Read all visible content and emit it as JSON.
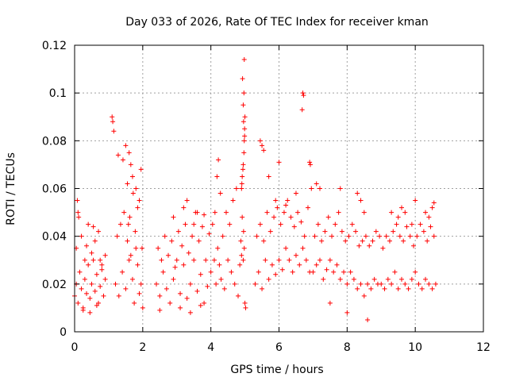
{
  "chart_data": {
    "type": "scatter",
    "title": "Day 033 of 2026, Rate Of TEC Index for receiver kman",
    "xlabel": "GPS time / hours",
    "ylabel": "ROTI / TECUs",
    "xlim": [
      0,
      12
    ],
    "ylim": [
      0,
      0.12
    ],
    "xticks": [
      0,
      2,
      4,
      6,
      8,
      10,
      12
    ],
    "xtick_labels": [
      "0",
      "2",
      "4",
      "6",
      "8",
      "10",
      "12"
    ],
    "yticks": [
      0,
      0.02,
      0.04,
      0.06,
      0.08,
      0.1,
      0.12
    ],
    "ytick_labels": [
      "0",
      "0.02",
      "0.04",
      "0.06",
      "0.08",
      "0.1",
      "0.12"
    ],
    "grid": true,
    "marker": "plus",
    "color": "#ff0000",
    "series": [
      {
        "name": "ROTI",
        "x": [
          0.0,
          0.05,
          0.1,
          0.15,
          0.2,
          0.25,
          0.3,
          0.35,
          0.4,
          0.45,
          0.5,
          0.55,
          0.6,
          0.65,
          0.7,
          0.75,
          0.8,
          0.85,
          0.9,
          0.05,
          0.1,
          0.2,
          0.3,
          0.4,
          0.5,
          0.6,
          0.7,
          0.8,
          0.9,
          0.08,
          0.12,
          0.35,
          0.55,
          0.75,
          0.25,
          0.45,
          0.65,
          1.1,
          1.12,
          1.15,
          1.2,
          1.3,
          1.4,
          1.5,
          1.6,
          1.7,
          1.75,
          1.8,
          1.85,
          1.9,
          1.95,
          2.0,
          1.25,
          1.35,
          1.45,
          1.55,
          1.65,
          1.5,
          1.6,
          1.65,
          1.7,
          1.8,
          1.9,
          1.95,
          1.72,
          1.85,
          1.62,
          1.55,
          1.28,
          1.42,
          1.58,
          1.78,
          1.98,
          2.4,
          2.5,
          2.6,
          2.7,
          2.8,
          2.9,
          3.0,
          3.1,
          3.2,
          3.3,
          3.4,
          3.5,
          3.6,
          3.7,
          3.8,
          3.9,
          2.45,
          2.55,
          2.65,
          2.75,
          2.85,
          2.95,
          3.05,
          3.15,
          3.25,
          3.35,
          3.45,
          3.55,
          3.65,
          3.75,
          3.85,
          3.95,
          2.9,
          3.2,
          3.3,
          3.5,
          3.6,
          3.8,
          2.5,
          3.1,
          3.4,
          3.7,
          4.0,
          4.1,
          4.15,
          4.2,
          4.25,
          4.3,
          4.4,
          4.5,
          4.6,
          4.7,
          4.8,
          4.85,
          4.9,
          4.95,
          5.0,
          5.02,
          4.05,
          4.12,
          4.18,
          4.22,
          4.28,
          4.35,
          4.45,
          4.55,
          4.65,
          4.75,
          4.88,
          4.92,
          4.96,
          4.98,
          4.9,
          4.92,
          4.95,
          4.97,
          4.98,
          4.99,
          5.0,
          4.95,
          4.97,
          4.93,
          4.96,
          4.99,
          4.94,
          4.98,
          4.91,
          5.3,
          5.4,
          5.5,
          5.6,
          5.7,
          5.8,
          5.9,
          6.0,
          6.1,
          6.2,
          6.3,
          6.4,
          6.5,
          6.6,
          6.7,
          6.8,
          6.9,
          5.35,
          5.45,
          5.55,
          5.65,
          5.75,
          5.85,
          5.95,
          6.05,
          6.15,
          6.25,
          6.35,
          6.45,
          6.55,
          6.65,
          6.75,
          6.85,
          6.95,
          5.45,
          5.5,
          5.55,
          5.7,
          6.0,
          6.7,
          6.72,
          6.68,
          6.9,
          6.92,
          6.5,
          6.2,
          5.9,
          7.0,
          7.1,
          7.2,
          7.3,
          7.4,
          7.5,
          7.6,
          7.7,
          7.8,
          7.9,
          8.0,
          8.1,
          8.2,
          8.3,
          8.4,
          8.5,
          8.6,
          8.7,
          8.8,
          8.9,
          7.05,
          7.15,
          7.25,
          7.35,
          7.45,
          7.55,
          7.65,
          7.75,
          7.85,
          7.95,
          8.05,
          8.15,
          8.25,
          8.35,
          8.45,
          8.55,
          8.65,
          8.75,
          8.85,
          8.95,
          7.1,
          7.2,
          7.8,
          8.3,
          8.4,
          8.5,
          7.5,
          8.0,
          8.6,
          9.0,
          9.1,
          9.2,
          9.3,
          9.4,
          9.5,
          9.6,
          9.7,
          9.8,
          9.9,
          10.0,
          10.1,
          10.2,
          10.3,
          10.4,
          10.5,
          10.6,
          9.05,
          9.15,
          9.25,
          9.35,
          9.45,
          9.55,
          9.65,
          9.75,
          9.85,
          9.95,
          10.05,
          10.15,
          10.25,
          10.35,
          10.45,
          10.55,
          9.3,
          9.5,
          9.6,
          9.7,
          10.0,
          10.3,
          10.4,
          10.5,
          10.55,
          9.9
        ],
        "y": [
          0.015,
          0.02,
          0.012,
          0.025,
          0.018,
          0.01,
          0.022,
          0.016,
          0.028,
          0.014,
          0.02,
          0.03,
          0.017,
          0.024,
          0.012,
          0.019,
          0.026,
          0.015,
          0.022,
          0.035,
          0.05,
          0.04,
          0.03,
          0.045,
          0.033,
          0.038,
          0.042,
          0.028,
          0.032,
          0.055,
          0.048,
          0.036,
          0.044,
          0.03,
          0.009,
          0.008,
          0.011,
          0.09,
          0.088,
          0.084,
          0.02,
          0.015,
          0.025,
          0.018,
          0.03,
          0.022,
          0.012,
          0.035,
          0.028,
          0.016,
          0.02,
          0.01,
          0.04,
          0.045,
          0.05,
          0.038,
          0.032,
          0.078,
          0.075,
          0.07,
          0.065,
          0.06,
          0.055,
          0.068,
          0.058,
          0.052,
          0.048,
          0.062,
          0.074,
          0.072,
          0.045,
          0.042,
          0.035,
          0.02,
          0.015,
          0.025,
          0.018,
          0.012,
          0.022,
          0.03,
          0.016,
          0.028,
          0.014,
          0.02,
          0.03,
          0.017,
          0.024,
          0.012,
          0.019,
          0.035,
          0.03,
          0.04,
          0.032,
          0.038,
          0.027,
          0.042,
          0.036,
          0.045,
          0.033,
          0.04,
          0.05,
          0.038,
          0.044,
          0.03,
          0.041,
          0.048,
          0.052,
          0.055,
          0.045,
          0.05,
          0.049,
          0.009,
          0.01,
          0.008,
          0.011,
          0.025,
          0.03,
          0.02,
          0.035,
          0.028,
          0.022,
          0.018,
          0.03,
          0.025,
          0.02,
          0.015,
          0.028,
          0.032,
          0.03,
          0.012,
          0.01,
          0.045,
          0.05,
          0.065,
          0.072,
          0.058,
          0.04,
          0.05,
          0.045,
          0.055,
          0.06,
          0.038,
          0.048,
          0.042,
          0.035,
          0.06,
          0.065,
          0.07,
          0.075,
          0.08,
          0.085,
          0.09,
          0.095,
          0.1,
          0.106,
          0.088,
          0.082,
          0.068,
          0.114,
          0.062,
          0.02,
          0.025,
          0.018,
          0.03,
          0.022,
          0.028,
          0.024,
          0.03,
          0.026,
          0.035,
          0.03,
          0.025,
          0.032,
          0.028,
          0.035,
          0.03,
          0.025,
          0.04,
          0.045,
          0.038,
          0.05,
          0.042,
          0.048,
          0.052,
          0.045,
          0.05,
          0.055,
          0.048,
          0.044,
          0.05,
          0.046,
          0.04,
          0.052,
          0.06,
          0.08,
          0.078,
          0.076,
          0.065,
          0.071,
          0.1,
          0.099,
          0.093,
          0.071,
          0.07,
          0.058,
          0.053,
          0.055,
          0.025,
          0.028,
          0.03,
          0.022,
          0.026,
          0.03,
          0.025,
          0.028,
          0.022,
          0.025,
          0.02,
          0.025,
          0.022,
          0.018,
          0.02,
          0.015,
          0.02,
          0.018,
          0.022,
          0.02,
          0.04,
          0.045,
          0.038,
          0.042,
          0.048,
          0.04,
          0.045,
          0.05,
          0.042,
          0.038,
          0.04,
          0.045,
          0.042,
          0.036,
          0.038,
          0.04,
          0.036,
          0.038,
          0.042,
          0.04,
          0.062,
          0.06,
          0.06,
          0.058,
          0.055,
          0.05,
          0.012,
          0.008,
          0.005,
          0.02,
          0.018,
          0.022,
          0.02,
          0.025,
          0.018,
          0.022,
          0.02,
          0.018,
          0.022,
          0.025,
          0.02,
          0.018,
          0.022,
          0.02,
          0.018,
          0.02,
          0.035,
          0.04,
          0.038,
          0.042,
          0.045,
          0.04,
          0.038,
          0.044,
          0.04,
          0.036,
          0.04,
          0.045,
          0.042,
          0.038,
          0.044,
          0.04,
          0.05,
          0.048,
          0.052,
          0.05,
          0.055,
          0.05,
          0.048,
          0.052,
          0.054,
          0.045
        ]
      }
    ]
  }
}
